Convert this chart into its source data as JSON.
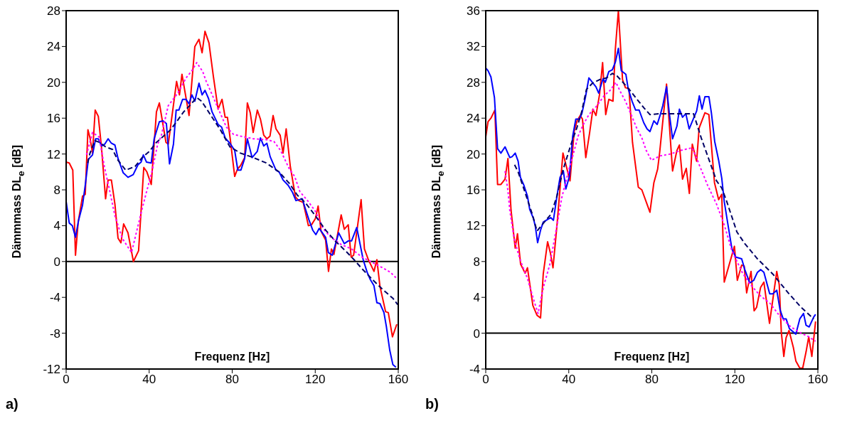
{
  "chart_data": [
    {
      "type": "line",
      "xlabel": "Frequenz [Hz]",
      "ylabel": "Dämmmass DL$_{e}$ [dB]",
      "annotations": [
        "a)"
      ],
      "xlim": [
        0,
        160
      ],
      "xticks": [
        0,
        40,
        80,
        120,
        160
      ],
      "ylim": [
        -12,
        28
      ],
      "yticks": [
        -12,
        -8,
        -4,
        0,
        4,
        8,
        12,
        16,
        20,
        24,
        28
      ],
      "ref_lines": [
        {
          "axis": "y",
          "value": 0,
          "color": "#000000"
        }
      ],
      "series": [
        {
          "color": "#ff0000",
          "line_style": "solid",
          "x": [
            0,
            1.5,
            3.2,
            4.5,
            5.8,
            7.9,
            9.2,
            10.5,
            11.5,
            12.7,
            14,
            15.5,
            17,
            19,
            20.2,
            21.8,
            23.5,
            25,
            26.4,
            27.7,
            29.8,
            32.4,
            34.9,
            37.4,
            38.9,
            41,
            43.5,
            44.9,
            48.1,
            49.2,
            53.2,
            54.6,
            55.8,
            59.2,
            62,
            64,
            65.5,
            66.9,
            68.8,
            70.9,
            73.2,
            75.1,
            76.6,
            77.7,
            79.2,
            81.2,
            82.5,
            84,
            86,
            87.3,
            88.7,
            90.1,
            92.1,
            93.6,
            95.2,
            96.7,
            98.2,
            99.7,
            101.1,
            103.1,
            104.5,
            106,
            108,
            110.5,
            112.1,
            114.2,
            116.7,
            118.2,
            120.1,
            121.4,
            122.8,
            125,
            126.4,
            127.8,
            129,
            132.5,
            134,
            135.9,
            137.3,
            138.5,
            142.1,
            143.7,
            145.6,
            148.3,
            149.7,
            151.2,
            153.9,
            155.2,
            157.2,
            159.3
          ],
          "values": [
            11.1,
            11,
            10.2,
            0.7,
            4.4,
            7.3,
            7.5,
            14.7,
            13.8,
            12.1,
            16.9,
            16.2,
            12.8,
            7,
            9.1,
            9.1,
            6.4,
            2.6,
            2.1,
            4.2,
            3.2,
            0,
            1.2,
            10.5,
            10,
            8.6,
            16.7,
            17.7,
            13.3,
            13.1,
            20.1,
            18.6,
            20.9,
            16.3,
            24,
            24.8,
            23.3,
            25.7,
            24.4,
            20.7,
            17,
            18.1,
            16.1,
            16.1,
            13.4,
            9.5,
            10.3,
            10.7,
            11.6,
            17.7,
            16.6,
            14.4,
            16.9,
            15.9,
            14.1,
            13.7,
            14,
            16.3,
            14.8,
            14.1,
            12.1,
            14.8,
            10.6,
            7.2,
            6.8,
            6.6,
            4,
            4.1,
            4.8,
            6.2,
            3.4,
            2.4,
            -1.1,
            1.4,
            0.8,
            5.2,
            3.6,
            4.1,
            0.5,
            0.7,
            6.9,
            1.4,
            0.2,
            -1.1,
            0.2,
            -2.8,
            -5.6,
            -5.7,
            -8.4,
            -7
          ]
        },
        {
          "color": "#0000ff",
          "line_style": "solid",
          "x": [
            0,
            1.5,
            3,
            4.5,
            6,
            7.9,
            9.2,
            10.7,
            12.7,
            14.2,
            15.5,
            17,
            18.6,
            20.2,
            21.8,
            23.5,
            25,
            27.5,
            29.8,
            32.3,
            34.6,
            36.1,
            37.2,
            38.7,
            41,
            42.4,
            44.9,
            46.7,
            48.3,
            49.8,
            51.7,
            53,
            54.3,
            56.1,
            57.8,
            59.2,
            60.6,
            62,
            64,
            65.5,
            66.9,
            68.6,
            70.3,
            73.2,
            74.9,
            76.6,
            79.2,
            81.2,
            82.7,
            84.2,
            86,
            87.3,
            89.6,
            92.1,
            93.6,
            95.2,
            96.7,
            98.3,
            101.1,
            102.6,
            104.5,
            107,
            109.1,
            110.7,
            112.3,
            113.8,
            115.1,
            116.9,
            118.8,
            120.3,
            121.9,
            125,
            126.3,
            128.2,
            131.3,
            134,
            135.9,
            137.5,
            140,
            143.1,
            145,
            146.5,
            148.3,
            149.7,
            151.2,
            153.1,
            154.3,
            155.9,
            157.4,
            158.9
          ],
          "values": [
            6.7,
            4.3,
            4,
            2.7,
            4.6,
            6.3,
            8.5,
            11.4,
            11.9,
            13.7,
            13.7,
            12.9,
            13.1,
            13.7,
            13.2,
            13,
            11.5,
            9.9,
            9.4,
            9.7,
            10.8,
            11.1,
            11.9,
            11.1,
            11,
            13.7,
            15.6,
            15.7,
            15.4,
            10.9,
            13.1,
            16.9,
            16.9,
            18.1,
            18.1,
            17.6,
            18.6,
            17.9,
            19.9,
            18.6,
            19.1,
            18.2,
            16.7,
            15.3,
            15,
            13.8,
            13.1,
            12.4,
            10.2,
            10.2,
            11.5,
            13.7,
            11.6,
            12.3,
            13.8,
            12.9,
            13.2,
            11.7,
            10.2,
            10,
            9.1,
            8.5,
            7.7,
            6.8,
            6.9,
            7,
            6,
            4.7,
            3.5,
            3,
            3.7,
            2.7,
            1,
            0.7,
            3.2,
            2,
            2.3,
            2.3,
            3.8,
            0.2,
            -1.2,
            -2,
            -2.7,
            -4.6,
            -4.7,
            -5.7,
            -7.3,
            -9.9,
            -11.5,
            -11.8
          ]
        },
        {
          "color": "#ff00ff",
          "line_style": "dotted",
          "x": [
            9.8,
            12.7,
            15.9,
            18.4,
            20.7,
            23.5,
            27,
            31.5,
            33.8,
            36.1,
            38.4,
            41.2,
            44.1,
            45.8,
            49.2,
            53.8,
            57.8,
            60.6,
            62.9,
            65.8,
            67.5,
            69.8,
            73.2,
            77.2,
            80.6,
            84,
            90.2,
            96.4,
            100.1,
            103.3,
            107.6,
            110.1,
            112.6,
            116.3,
            120.1,
            123.8,
            127.5,
            132.5,
            137.5,
            142.5,
            147.5,
            152.4,
            156.2,
            159.3
          ],
          "values": [
            11.9,
            14.4,
            13.9,
            10.6,
            8.2,
            5.1,
            2.6,
            1,
            3.2,
            5.4,
            7.5,
            9.9,
            13.1,
            14,
            17.4,
            18.8,
            20.5,
            21.3,
            22.2,
            21.2,
            20.1,
            18.9,
            17.1,
            15,
            14.2,
            14,
            13.7,
            13.6,
            13.4,
            12.4,
            10.3,
            9.5,
            7.8,
            6.8,
            5.6,
            3.7,
            2.7,
            1.9,
            1.4,
            0.5,
            -0.1,
            -0.7,
            -1.2,
            -1.9
          ]
        },
        {
          "color": "#000066",
          "line_style": "dashed",
          "x": [
            10.4,
            11.5,
            13.8,
            16.1,
            19,
            22.4,
            24.7,
            28.7,
            33.2,
            36.6,
            40.1,
            43.5,
            46.9,
            50.3,
            53.2,
            56.6,
            59.5,
            62.9,
            65.2,
            67.5,
            70.9,
            74.3,
            78.9,
            84,
            90.2,
            96.4,
            102.6,
            107.6,
            111.4,
            115.1,
            120.1,
            125,
            130,
            135,
            138.7,
            142.5,
            147.5,
            152.4,
            157.4,
            159.7
          ],
          "values": [
            11,
            12.1,
            13.5,
            13.3,
            12.8,
            12.5,
            11.4,
            10.2,
            10.6,
            11.6,
            12.3,
            13.3,
            14,
            14.7,
            15.6,
            16.7,
            17.4,
            18.3,
            17.9,
            17.1,
            15.9,
            14.7,
            12.8,
            12.1,
            11.6,
            11,
            10,
            8.7,
            7.4,
            6.6,
            5.1,
            3.5,
            2.2,
            1.1,
            0.2,
            -0.8,
            -2,
            -3.1,
            -4.1,
            -4.8
          ]
        }
      ]
    },
    {
      "type": "line",
      "xlabel": "Frequenz [Hz]",
      "ylabel": "Dämmmass DL$_{e}$ [dB]",
      "annotations": [
        "b)"
      ],
      "xlim": [
        0,
        160
      ],
      "xticks": [
        0,
        40,
        80,
        120,
        160
      ],
      "ylim": [
        -4,
        36
      ],
      "yticks": [
        -4,
        0,
        4,
        8,
        12,
        16,
        20,
        24,
        28,
        32,
        36
      ],
      "ref_lines": [
        {
          "axis": "y",
          "value": 0,
          "color": "#000000"
        }
      ],
      "series": [
        {
          "color": "#ff0000",
          "line_style": "solid",
          "x": [
            0,
            1.1,
            2.5,
            4.4,
            5.7,
            7.3,
            9.3,
            10.7,
            12.2,
            14.2,
            15.3,
            16.8,
            19,
            20.1,
            22.7,
            24.7,
            26.4,
            27.7,
            29.8,
            31.1,
            32.4,
            34.3,
            37.2,
            40.6,
            42.6,
            44,
            45.5,
            46.6,
            48.2,
            50,
            51.6,
            53.1,
            54.8,
            56.3,
            57.8,
            59.3,
            61.3,
            62.4,
            63.9,
            65.9,
            67.3,
            69,
            70.7,
            73.5,
            75.2,
            77.7,
            79.1,
            81,
            82.8,
            83.8,
            87.1,
            90,
            92.1,
            93.3,
            94.8,
            96.6,
            98.1,
            99.5,
            101.6,
            102.8,
            105.6,
            107.5,
            110.2,
            112.2,
            113.7,
            114.9,
            119.8,
            121.2,
            123.3,
            124.5,
            125.7,
            127.8,
            129.3,
            130.5,
            132.4,
            134,
            136.7,
            140.2,
            141.4,
            142.4,
            143.6,
            144.7,
            146.1,
            148.2,
            149.4,
            151.3,
            152.7,
            154.3,
            155.6,
            157.1,
            158.9
          ],
          "values": [
            21.9,
            23.6,
            24,
            24.9,
            16.6,
            16.6,
            17.2,
            19.5,
            13.7,
            9.5,
            11.1,
            7.7,
            6.7,
            7.3,
            3.1,
            2,
            1.7,
            6.6,
            10.2,
            9,
            7.3,
            12,
            20.1,
            17,
            22.5,
            23.7,
            24.3,
            23.9,
            19.6,
            22.3,
            25,
            24.3,
            26.6,
            30.2,
            24.4,
            26.1,
            25.9,
            31.6,
            36,
            28.3,
            27.4,
            27.3,
            21.3,
            16.3,
            16,
            14.4,
            13.5,
            16.8,
            18.3,
            20.2,
            27.8,
            18.1,
            20.4,
            21,
            17.2,
            18.4,
            15.6,
            21.1,
            19.2,
            22.9,
            24.6,
            24.4,
            16.8,
            14.9,
            15.5,
            5.7,
            9.7,
            5.9,
            7.6,
            7.5,
            4.5,
            6.9,
            2.5,
            2.9,
            5.1,
            5.7,
            1.1,
            6.9,
            5.4,
            0.1,
            -2.6,
            -0.5,
            0.3,
            -1.6,
            -3.1,
            -3.9,
            -3.9,
            -2.1,
            -0.4,
            -2.6,
            1.3
          ]
        },
        {
          "color": "#0000ff",
          "line_style": "solid",
          "x": [
            0,
            1.1,
            2.5,
            4.2,
            5.7,
            7.3,
            9.3,
            11.6,
            12.7,
            14.2,
            15.6,
            16.7,
            18.4,
            20.1,
            21.2,
            23,
            23.9,
            25,
            26.4,
            27.7,
            29.8,
            31.3,
            32.6,
            34.3,
            35.8,
            37.4,
            38.6,
            40.3,
            41.9,
            43.4,
            45.1,
            46.3,
            48,
            49.7,
            51.4,
            53.1,
            54.4,
            56.5,
            57.6,
            59.3,
            61,
            62.5,
            63.9,
            65.3,
            67.5,
            68.6,
            70.5,
            72.2,
            73.9,
            76.1,
            77.7,
            79.1,
            81,
            82.6,
            84.1,
            85.3,
            87.1,
            88.4,
            90,
            92.1,
            93.3,
            94.8,
            96.4,
            98,
            99.8,
            101.6,
            102.9,
            104.2,
            105.6,
            107.5,
            108.7,
            110.3,
            112.2,
            113.7,
            114.9,
            116.7,
            118.6,
            120.4,
            123.3,
            124.8,
            127.2,
            129.1,
            130.9,
            132.5,
            134,
            136.8,
            138.3,
            140.2,
            141.8,
            143.3,
            144.7,
            146.3,
            149.4,
            151.3,
            153.1,
            154.3,
            155.8,
            158,
            158.9
          ],
          "values": [
            29.6,
            29.3,
            28.6,
            26.3,
            20.6,
            20.1,
            20.8,
            19.6,
            19.7,
            20.1,
            19.2,
            17.4,
            16.5,
            15.3,
            13.8,
            12.8,
            11.9,
            10.1,
            11.5,
            12.4,
            12.7,
            12.9,
            12.6,
            15.3,
            17.4,
            18.1,
            16.1,
            17.5,
            22,
            23.9,
            23.9,
            24.5,
            26.3,
            28.5,
            28,
            27.5,
            26.8,
            28.4,
            28,
            29.2,
            29.4,
            30.3,
            31.8,
            29.3,
            28.9,
            27.3,
            25.9,
            24.9,
            24.9,
            23.5,
            22.8,
            22.5,
            23.7,
            23.3,
            24.4,
            25.4,
            27.5,
            24.6,
            21.7,
            23.1,
            25,
            24.1,
            24.5,
            22.8,
            23.8,
            24.8,
            26.5,
            25,
            26.4,
            26.4,
            24.6,
            21.4,
            19.3,
            17.3,
            14.7,
            12.1,
            9.4,
            8.5,
            8.3,
            7.1,
            5.6,
            5.9,
            6.8,
            7.1,
            6.8,
            4.4,
            4.4,
            4.8,
            2.6,
            1.6,
            1.6,
            0.5,
            -0.1,
            1.6,
            2.2,
            0.9,
            0.7,
            1.8,
            2.1
          ]
        },
        {
          "color": "#ff00ff",
          "line_style": "dotted",
          "x": [
            9.3,
            10.7,
            11.6,
            13.9,
            16.7,
            20.1,
            23,
            25.2,
            27,
            28.1,
            30.9,
            34.3,
            36.6,
            40,
            42.3,
            44.5,
            46.8,
            49.7,
            53.6,
            57,
            59.9,
            62.7,
            65,
            67.3,
            69.5,
            72.9,
            75.2,
            77.3,
            79.8,
            84.1,
            89,
            93.9,
            99.5,
            103.2,
            106.9,
            111.2,
            114.9,
            118.6,
            123.5,
            127.2,
            132.2,
            137.1,
            142,
            147,
            151.9,
            155.6,
            158.9
          ],
          "values": [
            18.1,
            15.9,
            13.7,
            10.3,
            8.1,
            6.1,
            3.8,
            2.2,
            4.3,
            5.4,
            7.7,
            12,
            15.1,
            18.2,
            20.1,
            22,
            23.2,
            24.4,
            25.4,
            26.5,
            27.1,
            28,
            26.9,
            25.9,
            24.7,
            22.8,
            21.8,
            20.4,
            19.3,
            19.8,
            20,
            20.4,
            20.7,
            18.6,
            16.5,
            14.4,
            12.1,
            9.2,
            6.8,
            5.5,
            4.2,
            3.3,
            1.8,
            0.7,
            0,
            -0.4,
            -0.9
          ]
        },
        {
          "color": "#000066",
          "line_style": "dashed",
          "x": [
            13.9,
            15.6,
            17.8,
            20.1,
            22.4,
            24.7,
            27.5,
            31.5,
            34.3,
            37.2,
            41.1,
            44,
            46.2,
            48.5,
            51.4,
            54.8,
            58.2,
            61,
            63.3,
            66.1,
            69.5,
            72.9,
            76.4,
            79.1,
            84.1,
            90.2,
            96.4,
            100.1,
            103.8,
            107.5,
            111.2,
            113.7,
            116.1,
            121,
            124.8,
            130.9,
            138.3,
            145.7,
            151.9,
            158
          ],
          "values": [
            18.8,
            18,
            16.5,
            14.9,
            13.3,
            11.4,
            12.2,
            13.3,
            15.3,
            18.2,
            21.1,
            23,
            24.7,
            27.2,
            27.9,
            28.3,
            28.5,
            29,
            28.7,
            28,
            27.1,
            26.1,
            25.1,
            24.4,
            24.5,
            24.5,
            24.5,
            24.5,
            21.8,
            19.4,
            17,
            16.2,
            14.7,
            11.3,
            10,
            8.3,
            6.6,
            4.5,
            2.9,
            1.6
          ]
        }
      ]
    }
  ]
}
